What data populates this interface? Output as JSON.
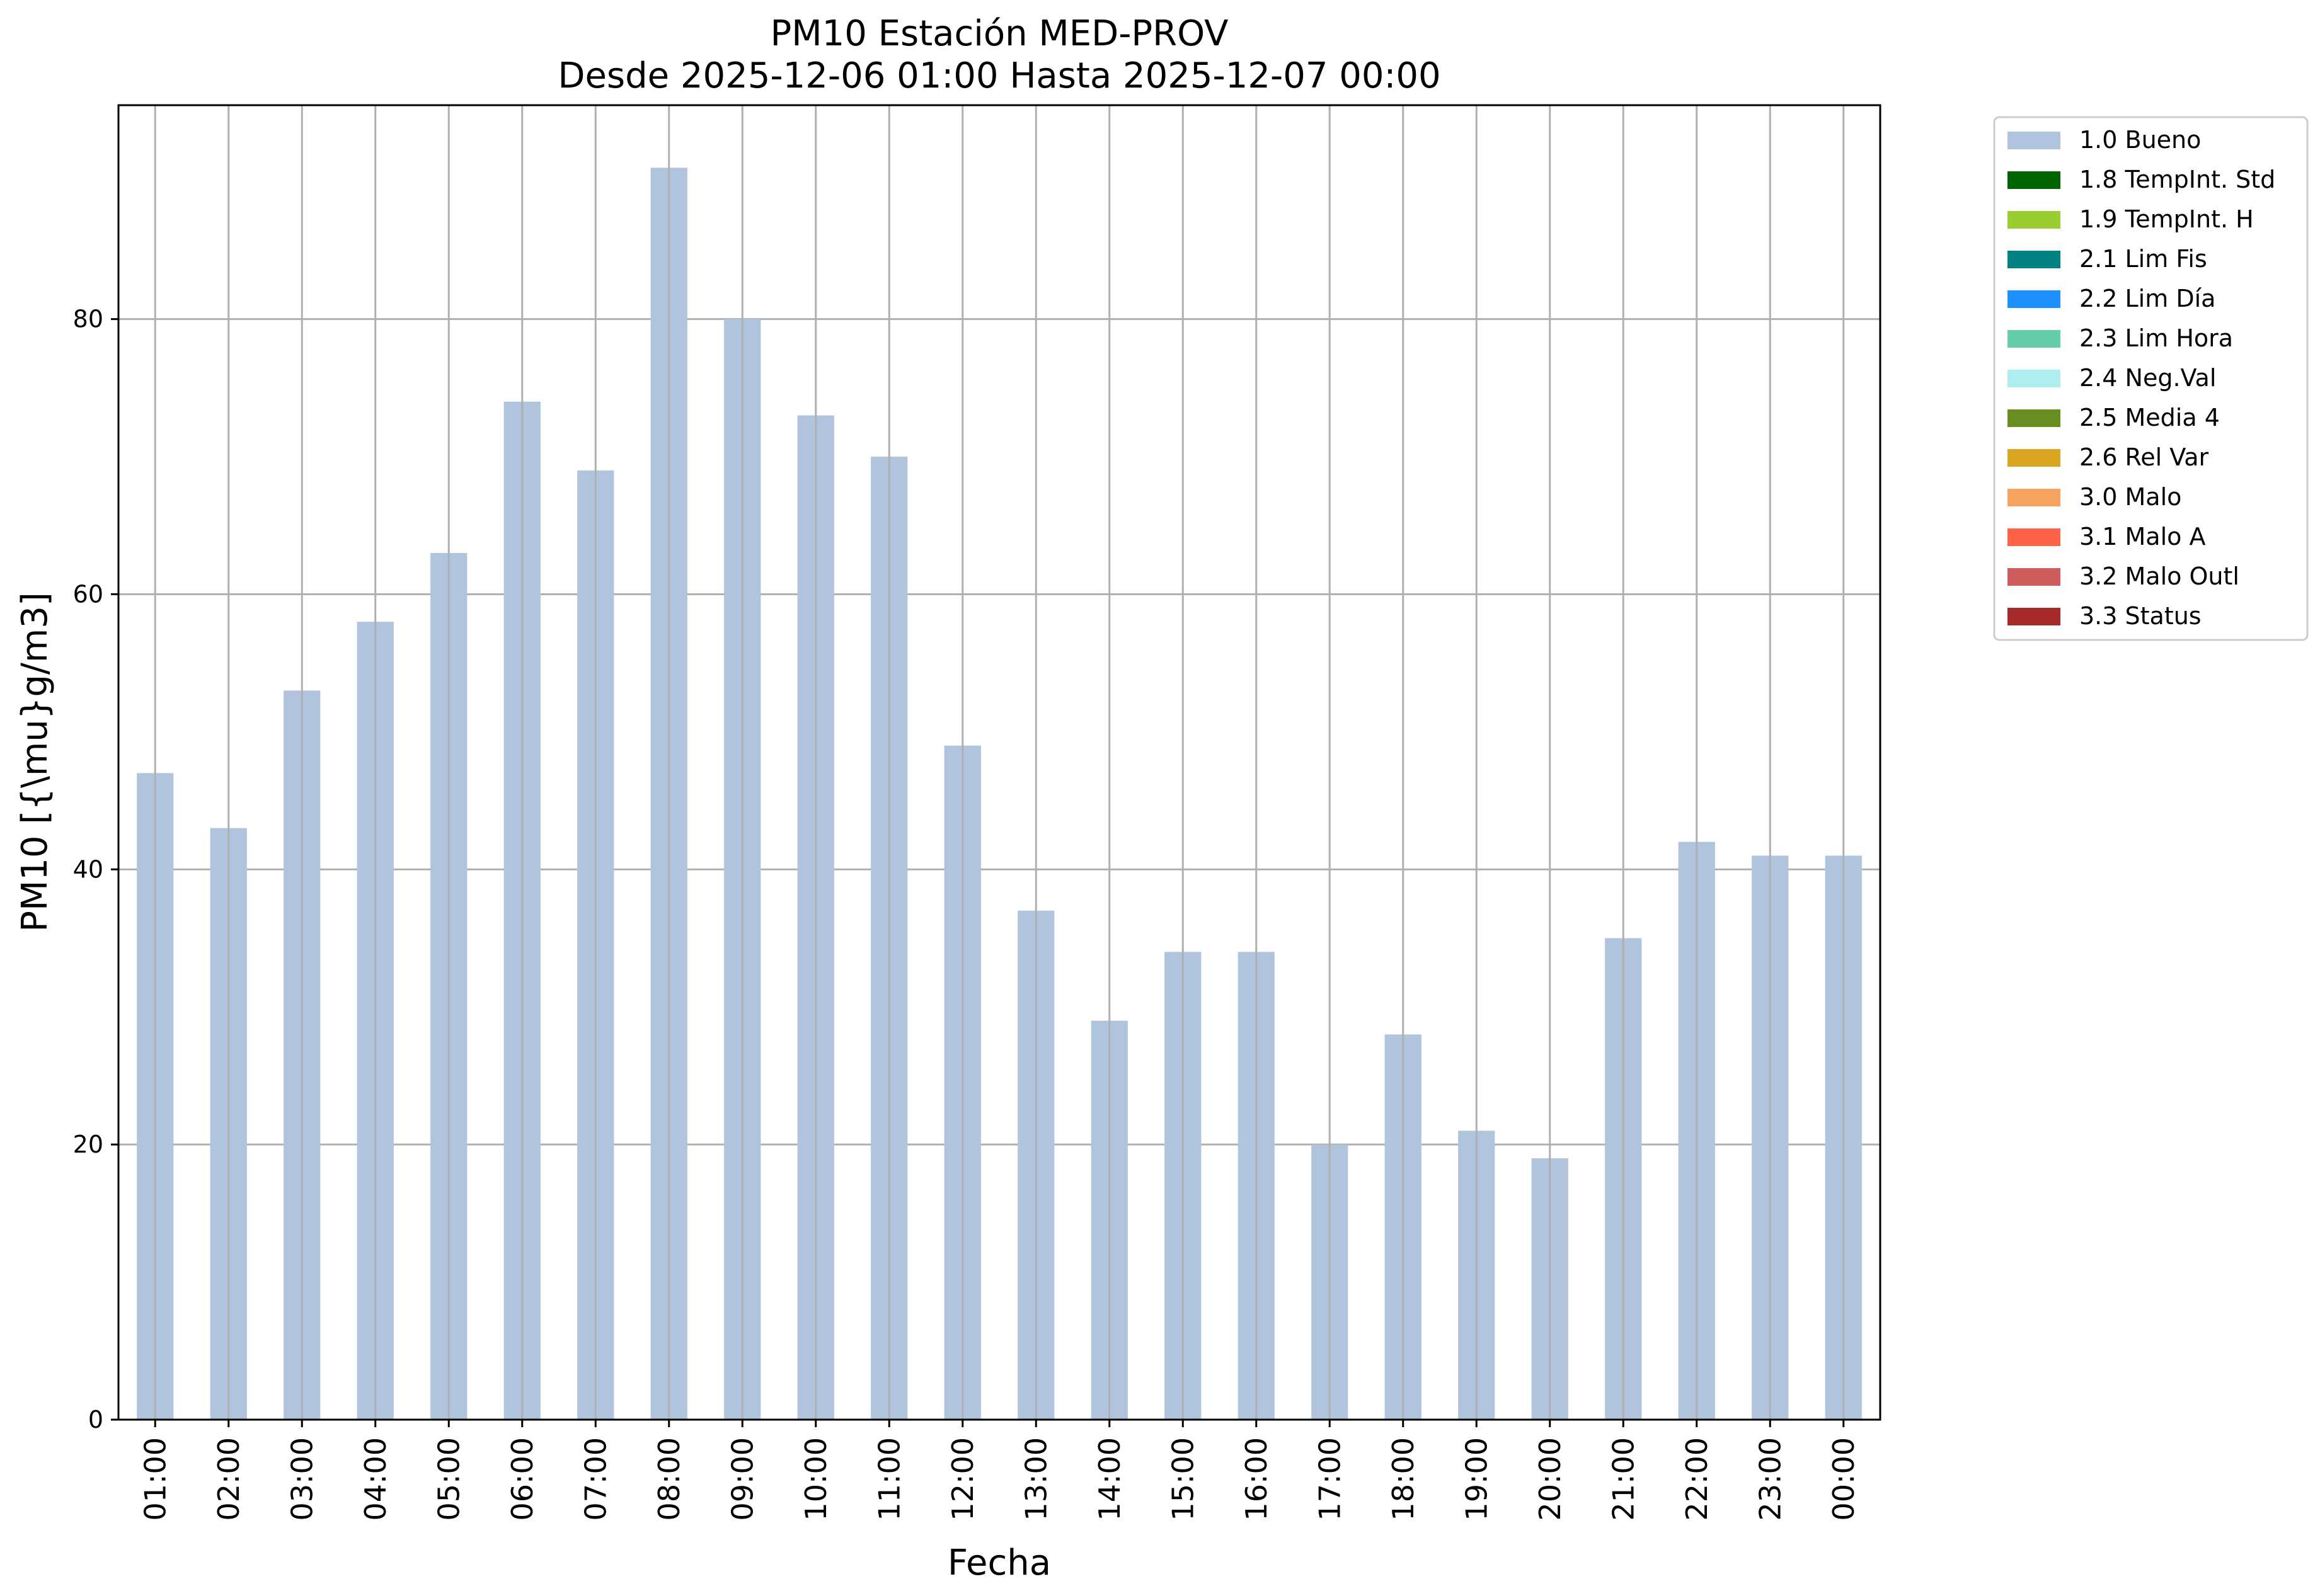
{
  "chart_data": {
    "type": "bar",
    "title": "PM10 Estación MED-PROV",
    "subtitle": "Desde 2025-12-06 01:00 Hasta 2025-12-07 00:00",
    "xlabel": "Fecha",
    "ylabel": "PM10 [{\\mu}g/m3]",
    "categories": [
      "01:00",
      "02:00",
      "03:00",
      "04:00",
      "05:00",
      "06:00",
      "07:00",
      "08:00",
      "09:00",
      "10:00",
      "11:00",
      "12:00",
      "13:00",
      "14:00",
      "15:00",
      "16:00",
      "17:00",
      "18:00",
      "19:00",
      "20:00",
      "21:00",
      "22:00",
      "23:00",
      "00:00"
    ],
    "series": [
      {
        "name": "1.0 Bueno",
        "color": "#b0c4de",
        "values": [
          47,
          43,
          53,
          58,
          63,
          74,
          69,
          91,
          80,
          73,
          70,
          49,
          37,
          29,
          34,
          34,
          20,
          28,
          21,
          19,
          35,
          42,
          41,
          41
        ]
      }
    ],
    "ylim": [
      0,
      95.55
    ],
    "yticks": [
      0,
      20,
      40,
      60,
      80
    ],
    "grid": true,
    "legend_position": "outside-top-right",
    "legend": [
      {
        "label": "1.0 Bueno",
        "color": "#b0c4de"
      },
      {
        "label": "1.8 TempInt. Std",
        "color": "#006400"
      },
      {
        "label": "1.9 TempInt. H",
        "color": "#9acd32"
      },
      {
        "label": "2.1 Lim Fis",
        "color": "#008080"
      },
      {
        "label": "2.2 Lim Día",
        "color": "#1e90ff"
      },
      {
        "label": "2.3 Lim Hora",
        "color": "#66cdaa"
      },
      {
        "label": "2.4 Neg.Val",
        "color": "#afeeee"
      },
      {
        "label": "2.5 Media 4",
        "color": "#6b8e23"
      },
      {
        "label": "2.6 Rel Var",
        "color": "#daa520"
      },
      {
        "label": "3.0 Malo",
        "color": "#f4a460"
      },
      {
        "label": "3.1 Malo A",
        "color": "#ff6347"
      },
      {
        "label": "3.2 Malo Outl",
        "color": "#cd5c5c"
      },
      {
        "label": "3.3 Status",
        "color": "#a52a2a"
      }
    ]
  }
}
